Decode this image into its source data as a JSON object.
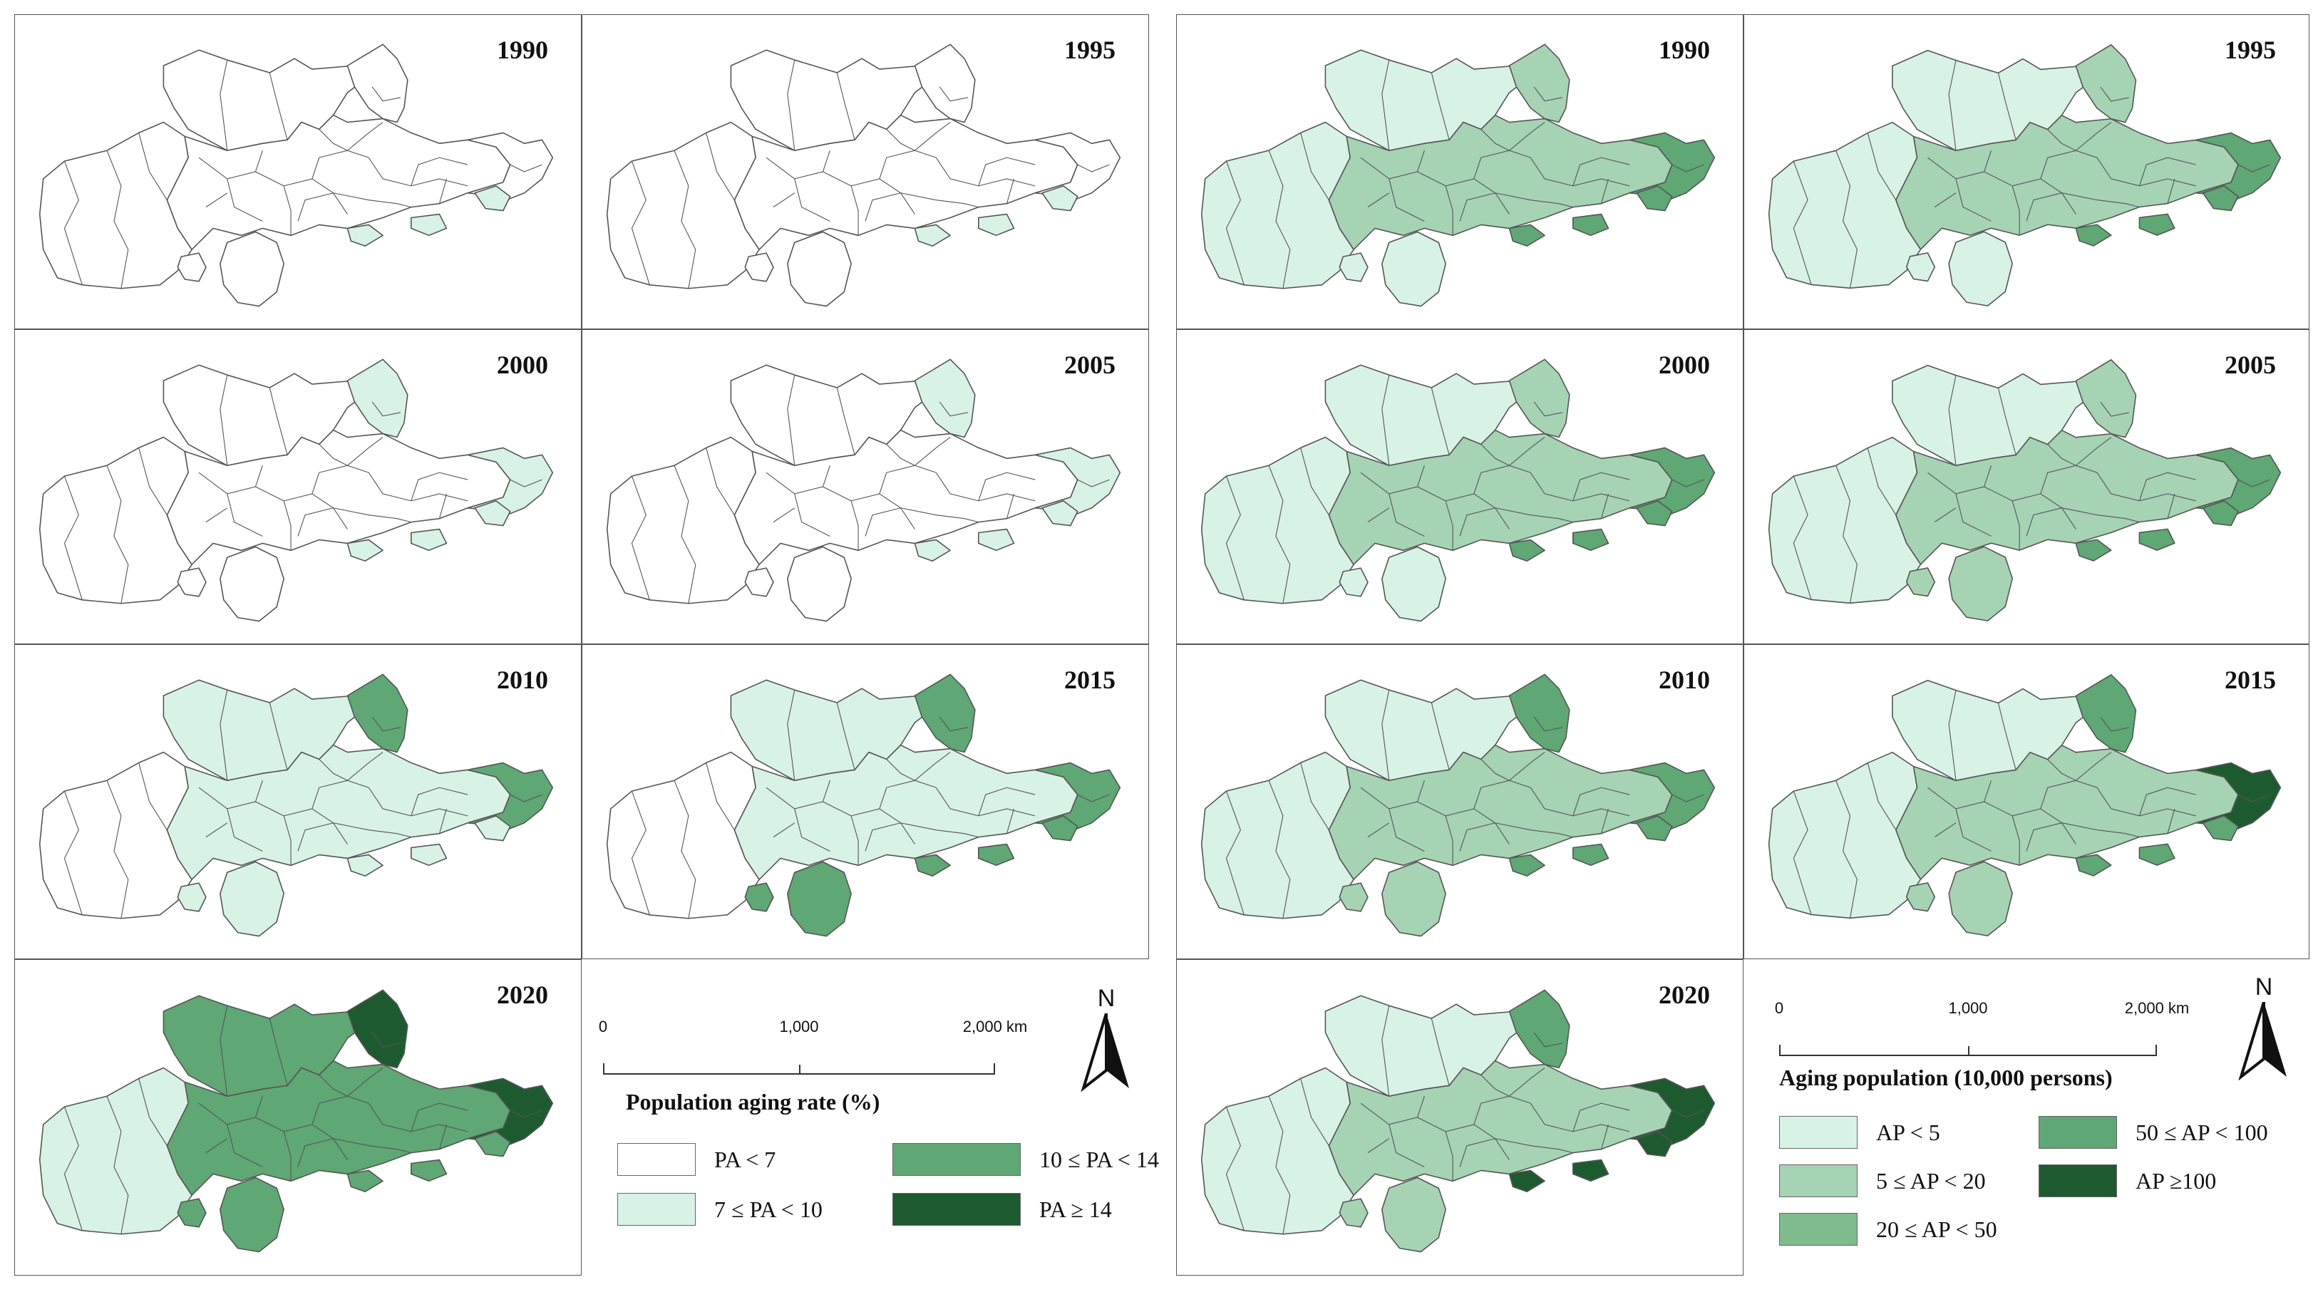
{
  "colors": {
    "c0": "#ffffff",
    "c1": "#d8f2e6",
    "c2": "#a6d3b3",
    "c3": "#5fa774",
    "c4": "#1e5a30",
    "stroke": "#555555"
  },
  "left_figure": {
    "panels": [
      {
        "year": "1990",
        "main": "c0",
        "east": "c0",
        "north": "c0",
        "south": "c0",
        "dots": "c1"
      },
      {
        "year": "1995",
        "main": "c0",
        "east": "c0",
        "north": "c0",
        "south": "c0",
        "dots": "c1"
      },
      {
        "year": "2000",
        "main": "c0",
        "east": "c1",
        "north": "c1",
        "south": "c0",
        "dots": "c1"
      },
      {
        "year": "2005",
        "main": "c0",
        "east": "c1",
        "north": "c1",
        "south": "c0",
        "dots": "c1"
      },
      {
        "year": "2010",
        "main": "c1",
        "east": "c3",
        "north": "c3",
        "south": "c1",
        "dots": "c1"
      },
      {
        "year": "2015",
        "main": "c1",
        "east": "c3",
        "north": "c3",
        "south": "c3",
        "dots": "c3"
      },
      {
        "year": "2020",
        "main": "c3",
        "east": "c4",
        "north": "c4",
        "south": "c3",
        "dots": "c3"
      }
    ],
    "legend": {
      "title": "Population aging rate (%)",
      "scale": {
        "t0": "0",
        "t1": "1,000",
        "t2": "2,000 km"
      },
      "north_label": "N",
      "items": [
        {
          "label": "PA < 7",
          "color": "c0"
        },
        {
          "label": "7 ≤ PA < 10",
          "color": "c1"
        },
        {
          "label": "10 ≤ PA < 14",
          "color": "c3"
        },
        {
          "label": "PA ≥ 14",
          "color": "c4"
        }
      ]
    }
  },
  "right_figure": {
    "panels": [
      {
        "year": "1990",
        "main": "c2",
        "east": "c3",
        "north": "c2",
        "south": "c1",
        "dots": "c3"
      },
      {
        "year": "1995",
        "main": "c2",
        "east": "c3",
        "north": "c2",
        "south": "c1",
        "dots": "c3"
      },
      {
        "year": "2000",
        "main": "c2",
        "east": "c3",
        "north": "c2",
        "south": "c1",
        "dots": "c3"
      },
      {
        "year": "2005",
        "main": "c2",
        "east": "c3",
        "north": "c2",
        "south": "c2",
        "dots": "c3"
      },
      {
        "year": "2010",
        "main": "c2",
        "east": "c3",
        "north": "c3",
        "south": "c2",
        "dots": "c3"
      },
      {
        "year": "2015",
        "main": "c2",
        "east": "c4",
        "north": "c3",
        "south": "c2",
        "dots": "c3"
      },
      {
        "year": "2020",
        "main": "c2",
        "east": "c4",
        "north": "c3",
        "south": "c2",
        "dots": "c4"
      }
    ],
    "legend": {
      "title": "Aging population (10,000 persons)",
      "scale": {
        "t0": "0",
        "t1": "1,000",
        "t2": "2,000 km"
      },
      "north_label": "N",
      "items": [
        {
          "label": "AP < 5",
          "color": "c1"
        },
        {
          "label": "5 ≤ AP < 20",
          "color": "c2"
        },
        {
          "label": "20 ≤ AP < 50",
          "color": "c2b"
        },
        {
          "label": "50 ≤ AP < 100",
          "color": "c3"
        },
        {
          "label": "AP ≥100",
          "color": "c4"
        }
      ]
    }
  }
}
